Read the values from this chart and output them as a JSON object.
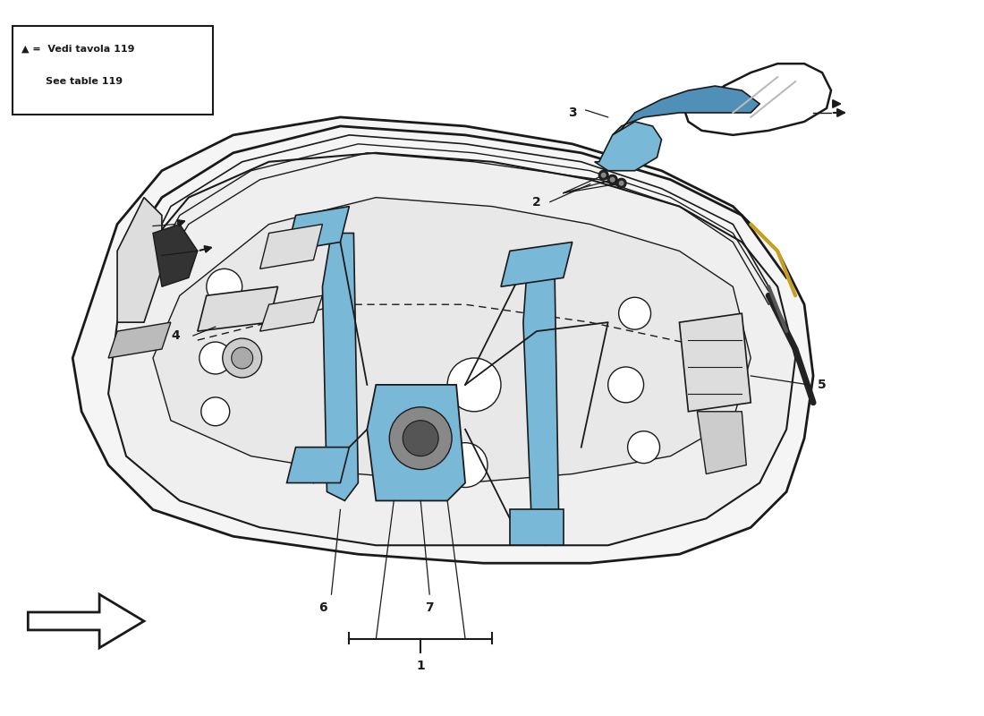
{
  "bg_color": "#ffffff",
  "line_color": "#1a1a1a",
  "accent_blue": "#7ab8d8",
  "accent_blue2": "#5090b8",
  "accent_blue3": "#4a8ab0",
  "door_fill": "#f0f0f0",
  "inner_fill": "#e4e4e4",
  "panel_fill": "#e8e8e8",
  "wm_color": "#c8b030",
  "legend_l1": "▲ =  Vedi tavola 119",
  "legend_l2": "       See table 119"
}
